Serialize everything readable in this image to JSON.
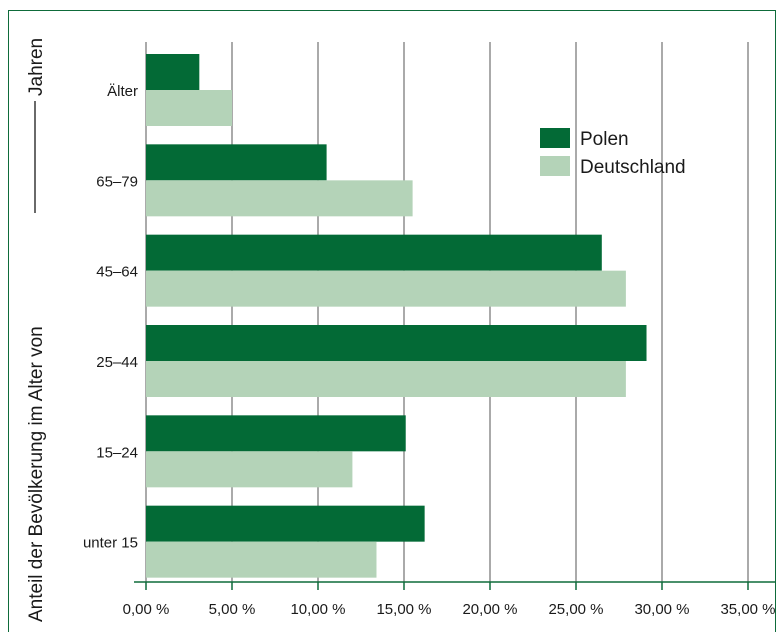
{
  "chart_data": {
    "type": "bar",
    "orientation": "horizontal",
    "title": "",
    "ylabel_part1": "Anteil der Bevölkerung im Alter von",
    "ylabel_part2": "Jahren",
    "xlabel": "",
    "categories": [
      "Älter",
      "65–79",
      "45–64",
      "25–44",
      "15–24",
      "unter 15"
    ],
    "series": [
      {
        "name": "Polen",
        "color": "#036a36",
        "values": [
          3.1,
          10.5,
          26.5,
          29.1,
          15.1,
          16.2
        ]
      },
      {
        "name": "Deutschland",
        "color": "#b4d3b8",
        "values": [
          5.0,
          15.5,
          27.9,
          27.9,
          12.0,
          13.4
        ]
      }
    ],
    "xlim": [
      0,
      35
    ],
    "xticks": [
      0,
      5,
      10,
      15,
      20,
      25,
      30,
      35
    ],
    "xtick_labels": [
      "0,00 %",
      "5,00 %",
      "10,00 %",
      "15,00 %",
      "20,00 %",
      "25,00 %",
      "30,00 %",
      "35,00 %"
    ],
    "grid": "vertical",
    "legend_position": "top-right"
  }
}
